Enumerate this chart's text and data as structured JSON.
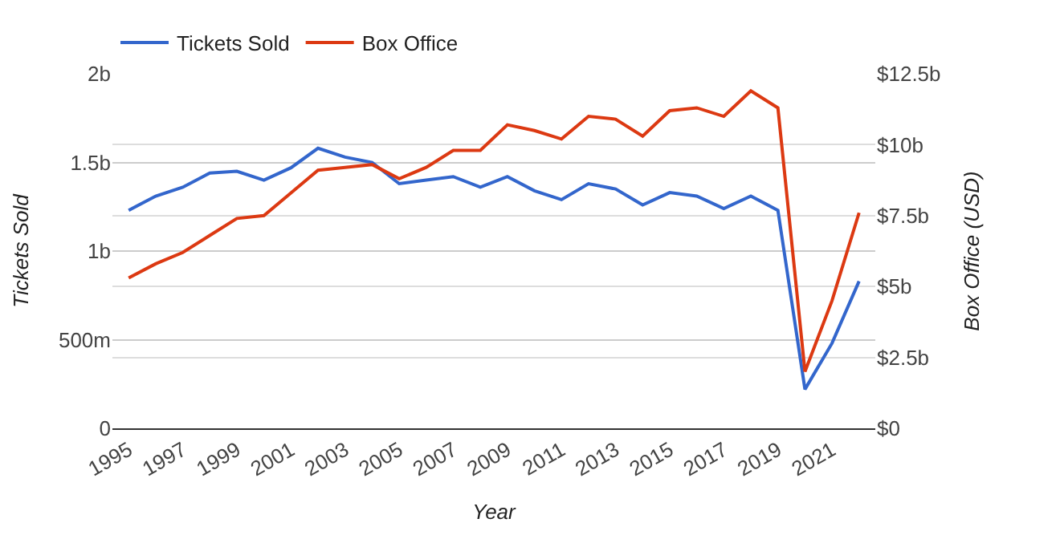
{
  "chart_data": {
    "type": "line",
    "xlabel": "Year",
    "ylabel": "Tickets Sold",
    "y2label": "Box Office (USD)",
    "x": [
      1995,
      1996,
      1997,
      1998,
      1999,
      2000,
      2001,
      2002,
      2003,
      2004,
      2005,
      2006,
      2007,
      2008,
      2009,
      2010,
      2011,
      2012,
      2013,
      2014,
      2015,
      2016,
      2017,
      2018,
      2019,
      2020,
      2021,
      2022
    ],
    "series": [
      {
        "name": "Tickets Sold",
        "color": "#3366cc",
        "values": [
          1230000000,
          1310000000,
          1360000000,
          1440000000,
          1450000000,
          1400000000,
          1470000000,
          1580000000,
          1530000000,
          1500000000,
          1380000000,
          1400000000,
          1420000000,
          1360000000,
          1420000000,
          1340000000,
          1290000000,
          1380000000,
          1350000000,
          1260000000,
          1330000000,
          1310000000,
          1240000000,
          1310000000,
          1230000000,
          220000000,
          480000000,
          830000000
        ]
      },
      {
        "name": "Box Office",
        "color": "#dc3912",
        "axis": "y2",
        "values": [
          5300000000,
          5800000000,
          6200000000,
          6800000000,
          7400000000,
          7500000000,
          8300000000,
          9100000000,
          9200000000,
          9300000000,
          8800000000,
          9200000000,
          9800000000,
          9800000000,
          10700000000,
          10500000000,
          10200000000,
          11000000000,
          10900000000,
          10300000000,
          11200000000,
          11300000000,
          11000000000,
          11900000000,
          11300000000,
          2000000000,
          4500000000,
          7600000000
        ]
      }
    ],
    "xlim": [
      1994.4,
      2022.6
    ],
    "xticks": [
      1995,
      1997,
      1999,
      2001,
      2003,
      2005,
      2007,
      2009,
      2011,
      2013,
      2015,
      2017,
      2019,
      2021
    ],
    "ylim": [
      0,
      2000000000
    ],
    "yticks": [
      0,
      {
        "value": 500000000,
        "label": "500m"
      },
      {
        "value": 1000000000,
        "label": "1b"
      },
      {
        "value": 1500000000,
        "label": "1.5b"
      },
      {
        "value": 2000000000,
        "label": "2b"
      }
    ],
    "y2lim": [
      0,
      12500000000
    ],
    "y2ticks": [
      {
        "value": 0,
        "label": "$0"
      },
      {
        "value": 2500000000,
        "label": "$2.5b"
      },
      {
        "value": 5000000000,
        "label": "$5b"
      },
      {
        "value": 7500000000,
        "label": "$7.5b"
      },
      {
        "value": 10000000000,
        "label": "$10b"
      },
      {
        "value": 12500000000,
        "label": "$12.5b"
      }
    ],
    "grid": "y",
    "legend": "top left",
    "marker": "none",
    "line_style": "solid"
  }
}
